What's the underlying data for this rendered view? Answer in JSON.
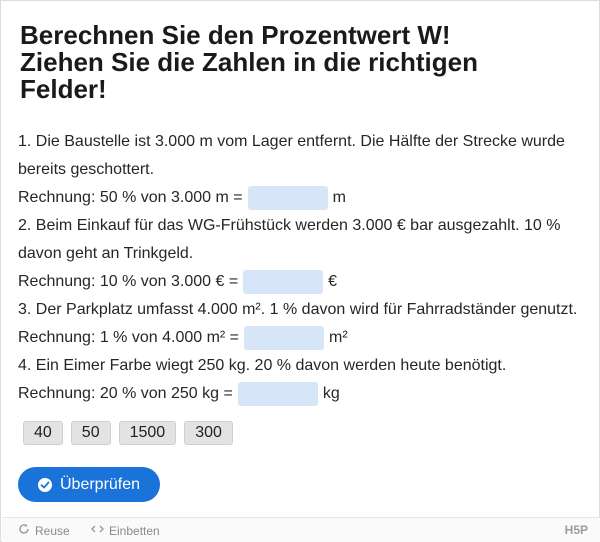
{
  "title_lines": [
    "Berechnen Sie den Prozentwert W!",
    "Ziehen Sie die Zahlen in die richtigen",
    "Felder!"
  ],
  "tasks": [
    {
      "text_lines": [
        "1. Die Baustelle ist 3.000 m vom Lager entfernt. Die Hälfte der Strecke wurde",
        "bereits geschottert."
      ],
      "calc_prefix": "Rechnung: 50 % von 3.000 m =",
      "unit": "m"
    },
    {
      "text_lines": [
        "2. Beim Einkauf für das WG-Frühstück werden 3.000 € bar ausgezahlt. 10 %",
        "davon geht an Trinkgeld."
      ],
      "calc_prefix": "Rechnung: 10 % von 3.000 € =",
      "unit": "€"
    },
    {
      "text_lines": [
        "3. Der Parkplatz umfasst 4.000 m². 1 % davon wird für Fahrradständer genutzt."
      ],
      "calc_prefix": "Rechnung: 1 % von 4.000 m² =",
      "unit": "m²"
    },
    {
      "text_lines": [
        "4. Ein Eimer Farbe wiegt 250 kg. 20 % davon werden heute benötigt."
      ],
      "calc_prefix": "Rechnung: 20 % von 250 kg =",
      "unit": "kg"
    }
  ],
  "draggables": [
    "40",
    "50",
    "1500",
    "300"
  ],
  "check_button": {
    "label": "Überprüfen",
    "icon": "check-circle-icon"
  },
  "footer": {
    "reuse_label": "Reuse",
    "embed_label": "Einbetten",
    "logo": "H5P",
    "reuse_icon": "reuse-icon",
    "embed_icon": "embed-icon"
  },
  "colors": {
    "accent": "#1a73d9",
    "dropzone": "#d6e6f8",
    "chip_bg": "#e3e3e3"
  }
}
